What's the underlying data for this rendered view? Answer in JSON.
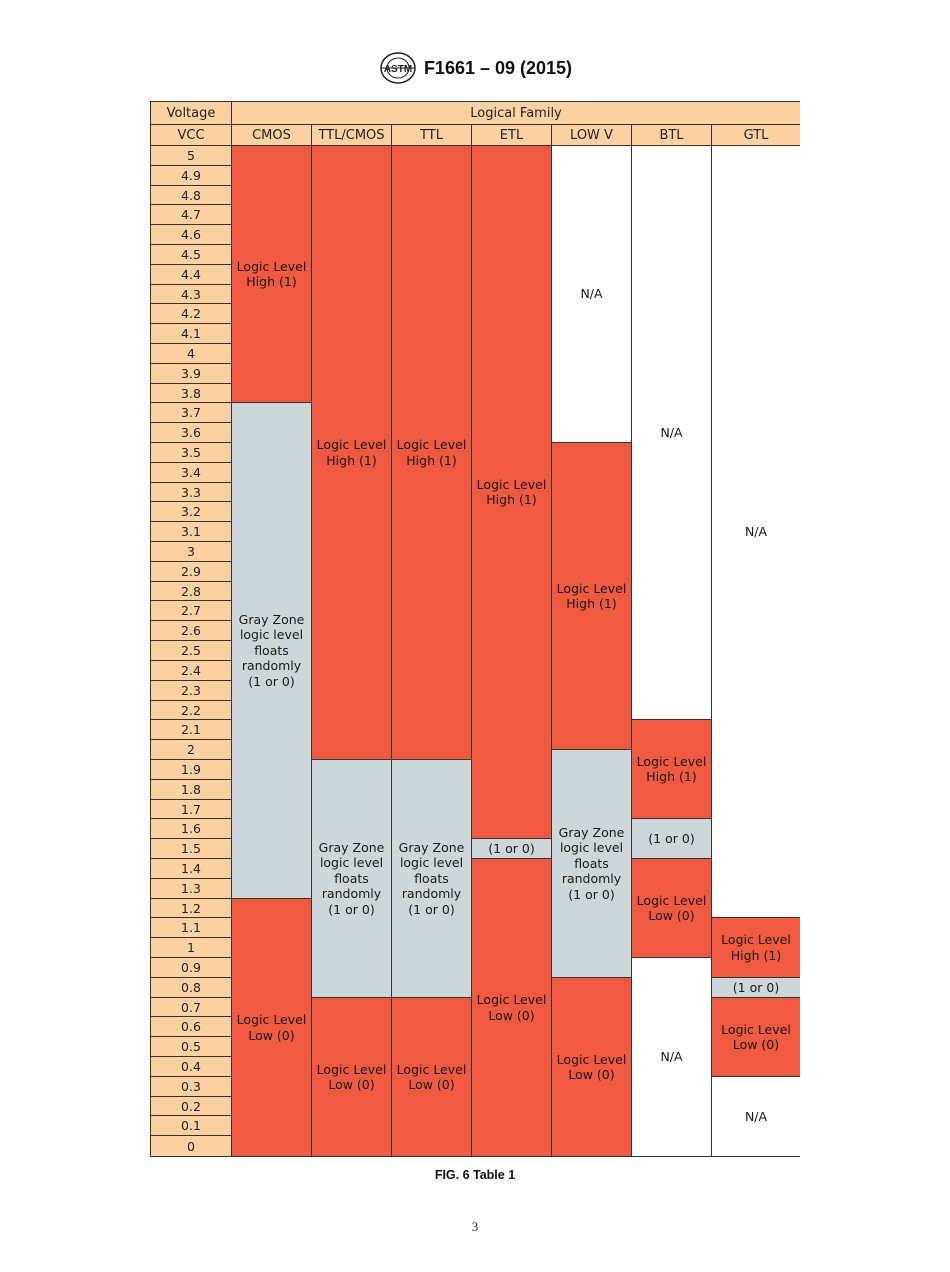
{
  "header": {
    "logo_text": "ASTM",
    "designation": "F1661 – 09 (2015)"
  },
  "table": {
    "voltage_header": "Voltage",
    "family_header": "Logical Family",
    "vcc_header": "VCC",
    "columns": [
      "CMOS",
      "TTL/CMOS",
      "TTL",
      "ETL",
      "LOW V",
      "BTL",
      "GTL"
    ],
    "voltages": [
      "5",
      "4.9",
      "4.8",
      "4.7",
      "4.6",
      "4.5",
      "4.4",
      "4.3",
      "4.2",
      "4.1",
      "4",
      "3.9",
      "3.8",
      "3.7",
      "3.6",
      "3.5",
      "3.4",
      "3.3",
      "3.2",
      "3.1",
      "3",
      "2.9",
      "2.8",
      "2.7",
      "2.6",
      "2.5",
      "2.4",
      "2.3",
      "2.2",
      "2.1",
      "2",
      "1.9",
      "1.8",
      "1.7",
      "1.6",
      "1.5",
      "1.4",
      "1.3",
      "1.2",
      "1.1",
      "1",
      "0.9",
      "0.8",
      "0.7",
      "0.6",
      "0.5",
      "0.4",
      "0.3",
      "0.2",
      "0.1",
      "0"
    ],
    "families": [
      {
        "name": "CMOS",
        "segments": [
          {
            "from": 5.0,
            "to": 3.8,
            "state": "high",
            "label": "Logic Level\nHigh (1)"
          },
          {
            "from": 3.8,
            "to": 1.3,
            "state": "gray",
            "label": "Gray Zone\nlogic level\nfloats\nrandomly\n(1 or 0)"
          },
          {
            "from": 1.3,
            "to": 0.0,
            "state": "low",
            "label": "Logic Level\nLow (0)"
          }
        ]
      },
      {
        "name": "TTL/CMOS",
        "segments": [
          {
            "from": 5.0,
            "to": 2.0,
            "state": "high",
            "label": "Logic Level\nHigh (1)"
          },
          {
            "from": 2.0,
            "to": 0.8,
            "state": "gray",
            "label": "Gray Zone\nlogic level\nfloats\nrandomly\n(1 or 0)"
          },
          {
            "from": 0.8,
            "to": 0.0,
            "state": "low",
            "label": "Logic Level\nLow (0)"
          }
        ]
      },
      {
        "name": "TTL",
        "segments": [
          {
            "from": 5.0,
            "to": 2.0,
            "state": "high",
            "label": "Logic Level\nHigh (1)"
          },
          {
            "from": 2.0,
            "to": 0.8,
            "state": "gray",
            "label": "Gray Zone\nlogic level\nfloats\nrandomly\n(1 or 0)"
          },
          {
            "from": 0.8,
            "to": 0.0,
            "state": "low",
            "label": "Logic Level\nLow (0)"
          }
        ]
      },
      {
        "name": "ETL",
        "segments": [
          {
            "from": 5.0,
            "to": 1.6,
            "state": "high",
            "label": "Logic Level\nHigh (1)"
          },
          {
            "from": 1.6,
            "to": 1.5,
            "state": "gray",
            "label": "(1 or 0)"
          },
          {
            "from": 1.5,
            "to": 0.0,
            "state": "low",
            "label": "Logic Level\nLow (0)"
          }
        ]
      },
      {
        "name": "LOW V",
        "segments": [
          {
            "from": 5.0,
            "to": 3.6,
            "state": "na",
            "label": "N/A"
          },
          {
            "from": 3.6,
            "to": 2.05,
            "state": "high",
            "label": "Logic Level\nHigh (1)"
          },
          {
            "from": 2.05,
            "to": 0.9,
            "state": "gray",
            "label": "Gray Zone\nlogic level\nfloats\nrandomly\n(1 or 0)"
          },
          {
            "from": 0.9,
            "to": 0.0,
            "state": "low",
            "label": "Logic Level\nLow (0)"
          }
        ]
      },
      {
        "name": "BTL",
        "segments": [
          {
            "from": 5.0,
            "to": 2.2,
            "state": "na",
            "label": "N/A"
          },
          {
            "from": 2.2,
            "to": 1.7,
            "state": "high",
            "label": "Logic Level\nHigh (1)"
          },
          {
            "from": 1.7,
            "to": 1.5,
            "state": "gray",
            "label": "(1 or 0)"
          },
          {
            "from": 1.5,
            "to": 1.0,
            "state": "low",
            "label": "Logic Level\nLow (0)"
          },
          {
            "from": 1.0,
            "to": 0.0,
            "state": "na",
            "label": "N/A"
          }
        ]
      },
      {
        "name": "GTL",
        "segments": [
          {
            "from": 5.0,
            "to": 1.2,
            "state": "na",
            "label": "N/A"
          },
          {
            "from": 1.2,
            "to": 0.9,
            "state": "high",
            "label": "Logic Level\nHigh (1)"
          },
          {
            "from": 0.9,
            "to": 0.8,
            "state": "gray",
            "label": "(1 or 0)"
          },
          {
            "from": 0.8,
            "to": 0.4,
            "state": "low",
            "label": "Logic Level\nLow (0)"
          },
          {
            "from": 0.4,
            "to": 0.0,
            "state": "na",
            "label": "N/A"
          }
        ]
      }
    ]
  },
  "colors": {
    "header_fill": "#fdd2a3",
    "high_fill": "#f05a40",
    "gray_fill": "#cdd6d9",
    "na_fill": "#ffffff"
  },
  "caption": "FIG. 6 Table 1",
  "page_number": "3"
}
